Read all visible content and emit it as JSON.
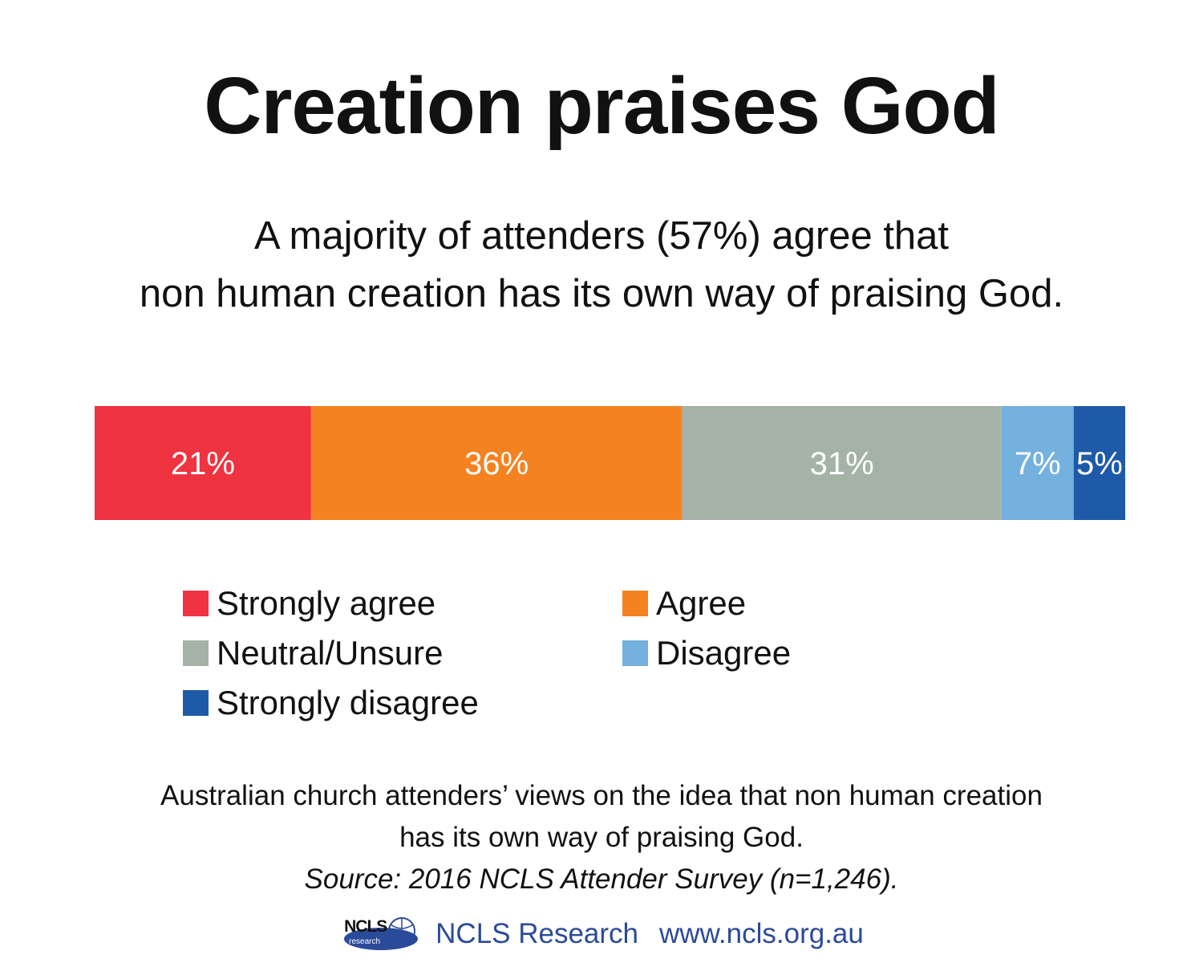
{
  "title": "Creation praises God",
  "subtitle": {
    "line1": "A majority of attenders (57%) agree that",
    "line2": "non human creation has its own way of praising God."
  },
  "chart_data": {
    "type": "bar",
    "orientation": "horizontal-stacked-100",
    "categories": [
      "Strongly agree",
      "Agree",
      "Neutral/Unsure",
      "Disagree",
      "Strongly disagree"
    ],
    "values": [
      21,
      36,
      31,
      7,
      5
    ],
    "labels": [
      "21%",
      "36%",
      "31%",
      "7%",
      "5%"
    ],
    "colors": [
      "#ef3340",
      "#f58220",
      "#a4b3a5",
      "#74b1df",
      "#1f5aa8"
    ],
    "label_color": "#ffffff",
    "legend_position": "bottom"
  },
  "legend": [
    {
      "label": "Strongly agree",
      "color": "#ef3340"
    },
    {
      "label": "Agree",
      "color": "#f58220"
    },
    {
      "label": "Neutral/Unsure",
      "color": "#a4b3a5"
    },
    {
      "label": "Disagree",
      "color": "#74b1df"
    },
    {
      "label": "Strongly disagree",
      "color": "#1f5aa8"
    }
  ],
  "caption": {
    "line1": "Australian church attenders’ views on the idea that non human creation",
    "line2": "has its own way of praising God.",
    "source": "Source: 2016 NCLS Attender Survey (n=1,246)."
  },
  "footer": {
    "logo_text": "NCLS",
    "logo_subtext": "research",
    "org": "NCLS Research",
    "url": "www.ncls.org.au",
    "color": "#2b4a9a"
  }
}
